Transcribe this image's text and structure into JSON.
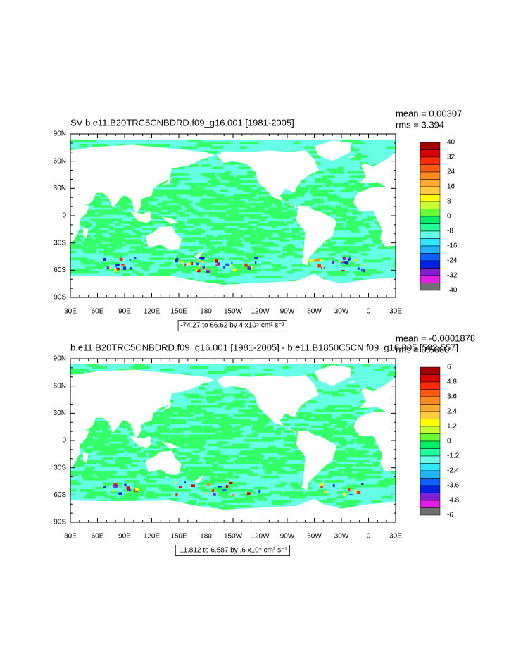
{
  "panels": [
    {
      "title": "SV b.e11.B20TRC5CNBDRD.f09_g16.001 [1981-2005]",
      "mean": "mean = 0.00307",
      "rms": "rms = 3.394",
      "lat_labels": [
        "90N",
        "60N",
        "30N",
        "0",
        "30S",
        "60S",
        "90S"
      ],
      "lon_labels": [
        "30E",
        "60E",
        "90E",
        "120E",
        "150E",
        "180",
        "150W",
        "120W",
        "90W",
        "60W",
        "30W",
        "0",
        "30E"
      ],
      "colorbar_labels": [
        40,
        32,
        24,
        16,
        8,
        0,
        -8,
        -16,
        -24,
        -32,
        -40
      ],
      "colorbar_colors": [
        "#a00000",
        "#d80000",
        "#ff2a00",
        "#ff5a10",
        "#ff8a20",
        "#ffaa30",
        "#ffcc40",
        "#ffff00",
        "#c8ff30",
        "#66ff33",
        "#00ee66",
        "#22ff99",
        "#66ffe6",
        "#33e6ff",
        "#20b4ff",
        "#1060ff",
        "#0020e0",
        "#8020d0",
        "#e020e0",
        "#707070"
      ],
      "range_note": "-74.27 to 66.62 by 4 x10⁵ cm² s⁻¹"
    },
    {
      "title": "b.e11.B20TRC5CNBDRD.f09_g16.001 [1981-2005] - b.e11.B1850C5CN.f09_g16.005 [502-557]",
      "mean": "mean = -0.0001878",
      "rms": "rms = 0.5660",
      "lat_labels": [
        "90N",
        "60N",
        "30N",
        "0",
        "30S",
        "60S",
        "90S"
      ],
      "lon_labels": [
        "30E",
        "60E",
        "90E",
        "120E",
        "150E",
        "180",
        "150W",
        "120W",
        "90W",
        "60W",
        "30W",
        "0",
        "30E"
      ],
      "colorbar_labels": [
        6,
        4.8,
        3.6,
        2.4,
        1.2,
        0,
        -1.2,
        -2.4,
        -3.6,
        -4.8,
        -6
      ],
      "colorbar_colors": [
        "#a00000",
        "#d80000",
        "#ff2a00",
        "#ff5a10",
        "#ff8a20",
        "#ffaa30",
        "#ffcc40",
        "#ffff00",
        "#c8ff30",
        "#66ff33",
        "#00ee66",
        "#22ff99",
        "#66ffe6",
        "#33e6ff",
        "#20b4ff",
        "#1060ff",
        "#0020e0",
        "#8020d0",
        "#e020e0",
        "#707070"
      ],
      "range_note": "-11.812 to 6.587 by .6 x10⁵ cm² s⁻¹"
    }
  ]
}
